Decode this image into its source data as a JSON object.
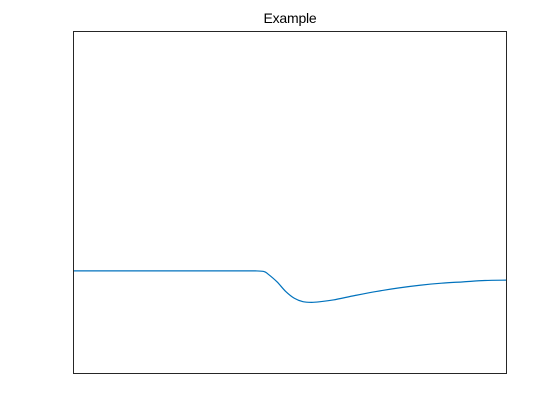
{
  "colors": {
    "background": "#ffffff",
    "axes_border": "#262626",
    "series_line": "#0072bd"
  },
  "chart_data": {
    "type": "line",
    "title": "Example",
    "xlabel": "",
    "ylabel": "",
    "grid": false,
    "legend": "none",
    "x_ticks_visible": false,
    "y_ticks_visible": false,
    "xlim": [
      0,
      1
    ],
    "ylim": [
      0,
      1
    ],
    "series": [
      {
        "color": "#0072bd",
        "x": [
          0.0,
          0.05,
          0.1,
          0.15,
          0.2,
          0.25,
          0.3,
          0.35,
          0.4,
          0.42,
          0.44,
          0.45,
          0.47,
          0.49,
          0.51,
          0.53,
          0.55,
          0.57,
          0.6,
          0.65,
          0.7,
          0.75,
          0.8,
          0.85,
          0.9,
          0.95,
          1.0
        ],
        "y": [
          0.3,
          0.3,
          0.3,
          0.3,
          0.3,
          0.3,
          0.3,
          0.3,
          0.3,
          0.3,
          0.298,
          0.29,
          0.268,
          0.24,
          0.22,
          0.21,
          0.208,
          0.21,
          0.215,
          0.228,
          0.24,
          0.25,
          0.258,
          0.264,
          0.268,
          0.272,
          0.273
        ]
      }
    ]
  }
}
